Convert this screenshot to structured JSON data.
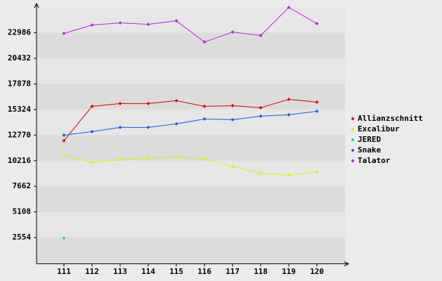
{
  "chart_data": {
    "type": "line",
    "categories": [
      111,
      112,
      113,
      114,
      115,
      116,
      117,
      118,
      119,
      120
    ],
    "series": [
      {
        "name": "Allianzschnitt",
        "color": "#e00000",
        "values": [
          12210,
          15640,
          15920,
          15920,
          16200,
          15640,
          15710,
          15500,
          16340,
          16060
        ]
      },
      {
        "name": "Excalibur",
        "color": "#e0f000",
        "values": [
          10810,
          10040,
          10320,
          10460,
          10600,
          10390,
          9620,
          8990,
          8780,
          9130
        ]
      },
      {
        "name": "JERED",
        "color": "#20e070",
        "values": [
          2480,
          null,
          null,
          null,
          null,
          null,
          null,
          null,
          null,
          null
        ]
      },
      {
        "name": "Snake",
        "color": "#1060e0",
        "values": [
          12770,
          13120,
          13540,
          13540,
          13890,
          14380,
          14310,
          14660,
          14800,
          15150
        ]
      },
      {
        "name": "Talator",
        "color": "#c020e0",
        "values": [
          22920,
          23750,
          23960,
          23820,
          24170,
          22060,
          23050,
          22710,
          25510,
          23890
        ]
      }
    ],
    "ylim": [
      0,
      25550
    ],
    "yticks": [
      2554,
      5108,
      7662,
      10216,
      12770,
      15324,
      17878,
      20432,
      22986
    ],
    "grid": true,
    "legend": "right"
  }
}
